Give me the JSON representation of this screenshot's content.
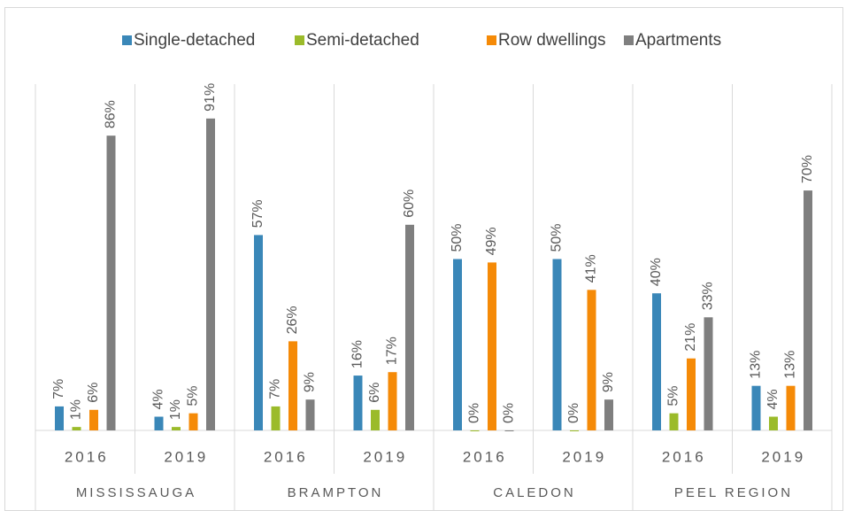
{
  "chart_data": {
    "type": "bar",
    "categories": [
      "2016",
      "2019",
      "2016",
      "2019",
      "2016",
      "2019",
      "2016",
      "2019"
    ],
    "category_groups": [
      "MISSISSAUGA",
      "BRAMPTON",
      "CALEDON",
      "PEEL REGION"
    ],
    "ylim": [
      0,
      100
    ],
    "legend": "top",
    "series": [
      {
        "name": "Single-detached",
        "color": "#3a87b8",
        "values": [
          7,
          4,
          57,
          16,
          50,
          50,
          40,
          13
        ],
        "value_labels": [
          "7%",
          "4%",
          "57%",
          "16%",
          "50%",
          "50%",
          "40%",
          "13%"
        ]
      },
      {
        "name": "Semi-detached",
        "color": "#9bbb2a",
        "values": [
          1,
          1,
          7,
          6,
          0,
          0,
          5,
          4
        ],
        "value_labels": [
          "1%",
          "1%",
          "7%",
          "6%",
          "0%",
          "0%",
          "5%",
          "4%"
        ]
      },
      {
        "name": "Row dwellings",
        "color": "#f58a07",
        "values": [
          6,
          5,
          26,
          17,
          49,
          41,
          21,
          13
        ],
        "value_labels": [
          "6%",
          "5%",
          "26%",
          "17%",
          "49%",
          "41%",
          "21%",
          "13%"
        ]
      },
      {
        "name": "Apartments",
        "color": "#7f7f7f",
        "values": [
          86,
          91,
          9,
          60,
          0,
          9,
          33,
          70
        ],
        "value_labels": [
          "86%",
          "91%",
          "9%",
          "60%",
          "0%",
          "9%",
          "33%",
          "70%"
        ]
      }
    ]
  }
}
